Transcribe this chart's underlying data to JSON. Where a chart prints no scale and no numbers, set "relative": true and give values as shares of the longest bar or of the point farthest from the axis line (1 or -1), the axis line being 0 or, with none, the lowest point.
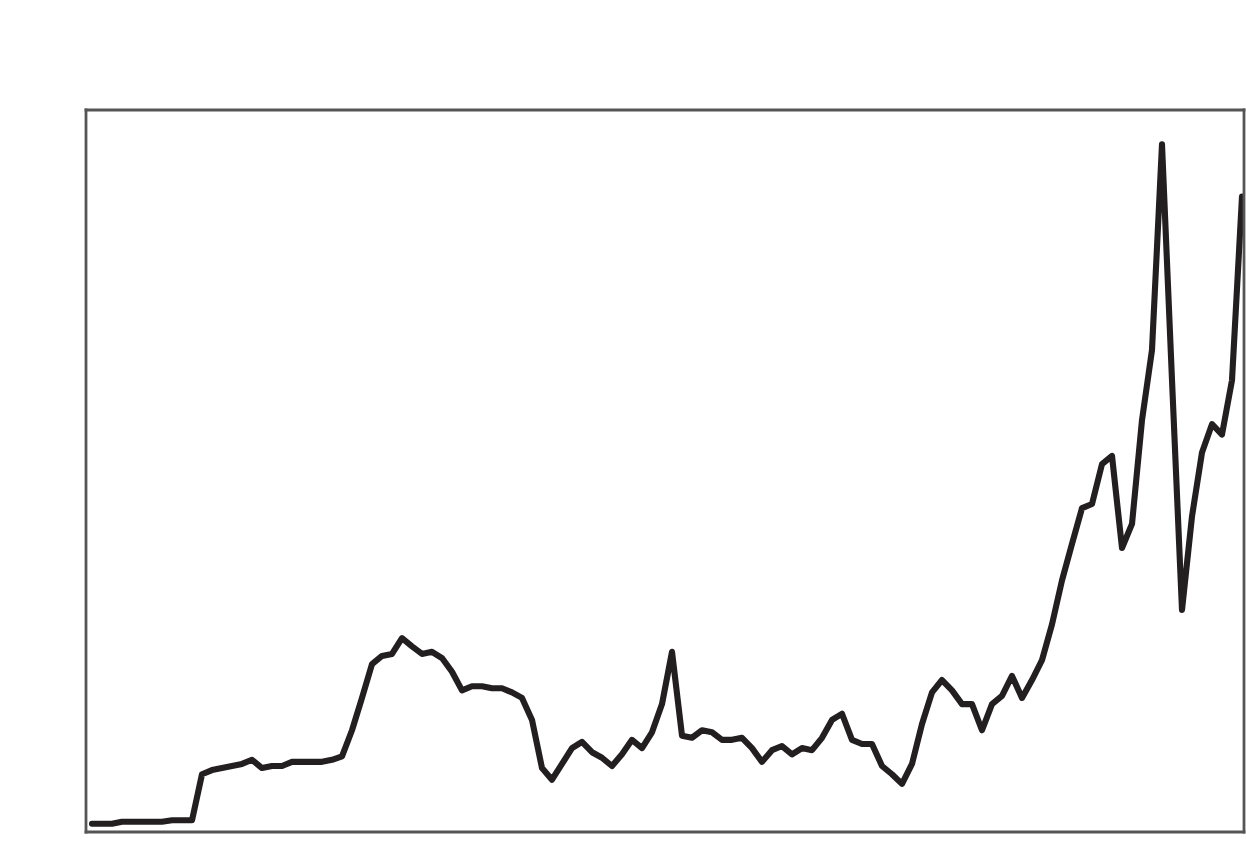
{
  "chart_data": {
    "type": "line",
    "relative": true,
    "grid": false,
    "legend": false,
    "categories": [
      null,
      null,
      null,
      null,
      null,
      null,
      null,
      null,
      null,
      null,
      null,
      null,
      null,
      null,
      null,
      null,
      null,
      null,
      null,
      null,
      null,
      null,
      null,
      null,
      null,
      null,
      null,
      null,
      null,
      null,
      null,
      null,
      null,
      null,
      null,
      null,
      null,
      null,
      null,
      null,
      null,
      null,
      null,
      null,
      null,
      null,
      null,
      null,
      null,
      null,
      null,
      null,
      null,
      null,
      null,
      null,
      null,
      null,
      null,
      null,
      null,
      null,
      null,
      null,
      null,
      null,
      null,
      null,
      null,
      null,
      null,
      null,
      null,
      null,
      null,
      null,
      null,
      null,
      null,
      null,
      null,
      null,
      null,
      null,
      null,
      null,
      null,
      null,
      null,
      null,
      null,
      null,
      null,
      null,
      null,
      null,
      null,
      null,
      null,
      null,
      null,
      null,
      null,
      null,
      null,
      null,
      null,
      null,
      null,
      null,
      null,
      null,
      null,
      null,
      null,
      null
    ],
    "series": [
      {
        "color": "#231f20",
        "values": [
          0.012,
          0.012,
          0.012,
          0.015,
          0.015,
          0.015,
          0.015,
          0.015,
          0.017,
          0.017,
          0.017,
          0.084,
          0.09,
          0.093,
          0.096,
          0.099,
          0.105,
          0.093,
          0.096,
          0.096,
          0.102,
          0.102,
          0.102,
          0.102,
          0.105,
          0.11,
          0.148,
          0.195,
          0.244,
          0.256,
          0.259,
          0.282,
          0.27,
          0.259,
          0.262,
          0.253,
          0.233,
          0.206,
          0.212,
          0.212,
          0.209,
          0.209,
          0.203,
          0.195,
          0.163,
          0.093,
          0.076,
          0.099,
          0.122,
          0.131,
          0.116,
          0.108,
          0.096,
          0.113,
          0.134,
          0.122,
          0.145,
          0.186,
          0.262,
          0.14,
          0.137,
          0.148,
          0.145,
          0.134,
          0.134,
          0.137,
          0.122,
          0.102,
          0.119,
          0.125,
          0.113,
          0.122,
          0.119,
          0.137,
          0.163,
          0.172,
          0.134,
          0.128,
          0.128,
          0.096,
          0.084,
          0.07,
          0.099,
          0.157,
          0.203,
          0.221,
          0.206,
          0.186,
          0.186,
          0.148,
          0.186,
          0.198,
          0.227,
          0.195,
          0.221,
          0.25,
          0.302,
          0.366,
          0.419,
          0.471,
          0.477,
          0.535,
          0.547,
          0.413,
          0.448,
          0.599,
          0.701,
          1.0,
          0.657,
          0.323,
          0.459,
          0.552,
          0.593,
          0.578,
          0.657,
          0.924
        ]
      }
    ]
  }
}
